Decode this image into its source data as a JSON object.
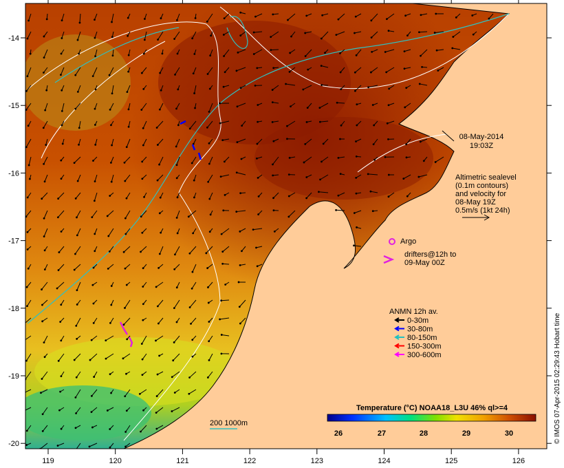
{
  "map": {
    "lon_ticks": [
      "119",
      "120",
      "121",
      "122",
      "123",
      "124",
      "125",
      "126"
    ],
    "lat_ticks": [
      "-14",
      "-15",
      "-16",
      "-17",
      "-18",
      "-19",
      "-20"
    ]
  },
  "date_label": {
    "line1": "08-May-2014",
    "line2": "19:03Z"
  },
  "altimetry_note": {
    "lines": [
      "Altimetric sealevel",
      "(0.1m contours)",
      "and velocity for",
      "08-May 19Z",
      "0.5m/s (1kt 24h)"
    ]
  },
  "argo": {
    "label": "Argo",
    "color": "#e020e0"
  },
  "drifters": {
    "line1": "drifters@12h to",
    "line2": "09-May 00Z",
    "color": "#e020e0"
  },
  "anmn": {
    "title": "ANMN 12h av.",
    "items": [
      {
        "label": "0-30m",
        "color": "#000000"
      },
      {
        "label": "30-80m",
        "color": "#0000ff"
      },
      {
        "label": "80-150m",
        "color": "#20c0c0"
      },
      {
        "label": "150-300m",
        "color": "#ff0000"
      },
      {
        "label": "300-600m",
        "color": "#ff00ff"
      }
    ]
  },
  "colorbar": {
    "title": "Temperature (°C) NOAA18_L3U 46% ql>=4",
    "ticks": [
      "26",
      "27",
      "28",
      "29",
      "30"
    ]
  },
  "bathymetry_legend": {
    "label": "200  1000m"
  },
  "credit": "© IMOS 07-Apr-2015 02:29:43 Hobart time",
  "colors": {
    "land": "#ffcc99",
    "sst_warm": "#a03000",
    "sst_mid": "#e08000",
    "sst_cool": "#f0d000",
    "sst_cold": "#30c060",
    "contour_200m": "#30c0c0"
  }
}
